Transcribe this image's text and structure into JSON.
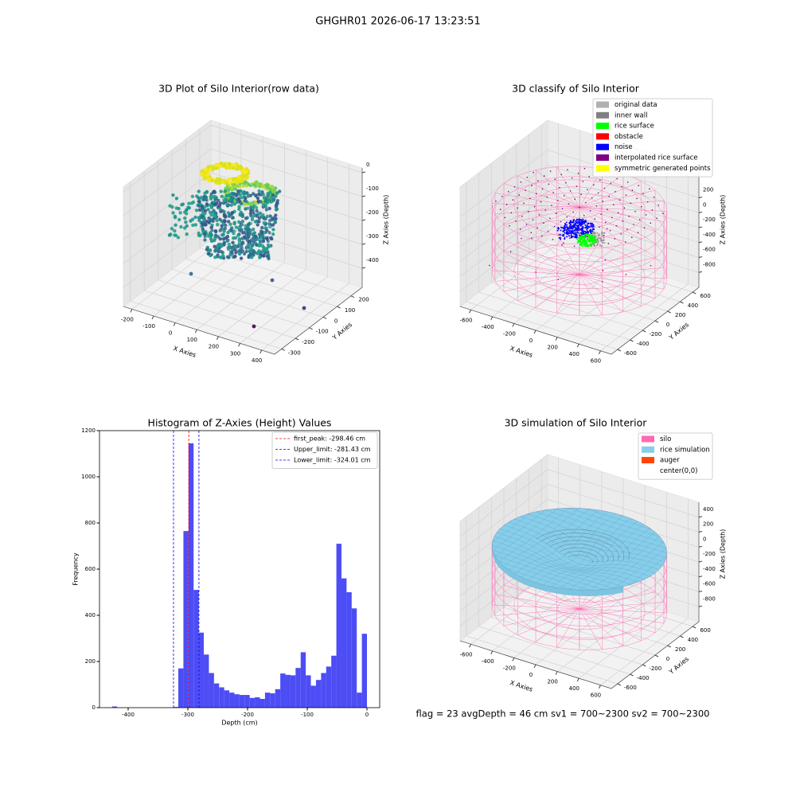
{
  "figure": {
    "title": "GHGHR01 2026-06-17 13:23:51",
    "footer": "flag = 23  avgDepth = 46 cm    sv1 = 700~2300  sv2 = 700~2300"
  },
  "chart_data": [
    {
      "type": "scatter3d",
      "title": "3D Plot of Silo Interior(row data)",
      "xlabel": "X Axies",
      "ylabel": "Y Axies",
      "zlabel": "Z Axies (Depth)",
      "xlim": [
        -240,
        460
      ],
      "xticks": [
        -200,
        -100,
        0,
        100,
        200,
        300,
        400
      ],
      "ylim": [
        -350,
        280
      ],
      "yticks": [
        -300,
        -200,
        -100,
        0,
        100,
        200
      ],
      "zlim": [
        -480,
        20
      ],
      "zticks": [
        -400,
        -300,
        -200,
        -100,
        0
      ]
    },
    {
      "type": "scatter3d",
      "title": "3D classify of Silo Interior",
      "xlabel": "X Axies",
      "ylabel": "Y Axies",
      "zlabel": "Z Axies (Depth)",
      "xlim": [
        -700,
        700
      ],
      "xticks": [
        -600,
        -400,
        -200,
        0,
        200,
        400,
        600
      ],
      "ylim": [
        -700,
        700
      ],
      "yticks": [
        -600,
        -400,
        -200,
        0,
        200,
        400,
        600
      ],
      "zlim": [
        -1000,
        600
      ],
      "zticks": [
        -800,
        -600,
        -400,
        -200,
        0,
        200
      ],
      "legend_loc": "upper right",
      "legend": [
        {
          "name": "original data",
          "color": "#b0b0b0"
        },
        {
          "name": "inner wall",
          "color": "#808080"
        },
        {
          "name": "rice surface",
          "color": "#00ff00"
        },
        {
          "name": "obstacle",
          "color": "#ff0000"
        },
        {
          "name": "noise",
          "color": "#0000ff"
        },
        {
          "name": "interpolated rice surface",
          "color": "#800080"
        },
        {
          "name": "symmetric generated points",
          "color": "#ffff00"
        }
      ]
    },
    {
      "type": "histogram",
      "title": "Histogram of Z-Axies (Height) Values",
      "xlabel": "Depth (cm)",
      "ylabel": "Frequency",
      "color": "#4d4df5",
      "bins": [
        -427,
        -418.46,
        -409.92,
        -401.38,
        -392.84,
        -384.3,
        -375.76,
        -367.22,
        -358.68,
        -350.14,
        -341.6,
        -333.06,
        -324.52,
        -315.98,
        -307.44,
        -298.9,
        -290.36,
        -281.82,
        -273.28,
        -264.74,
        -256.2,
        -247.66,
        -239.12,
        -230.58,
        -222.04,
        -213.5,
        -204.96,
        -196.42,
        -187.88,
        -179.34,
        -170.8,
        -162.26,
        -153.72,
        -145.18,
        -136.64,
        -128.1,
        -119.56,
        -111.02,
        -102.48,
        -93.94,
        -85.4,
        -76.86,
        -68.32,
        -59.78,
        -51.24,
        -42.7,
        -34.16,
        -25.62,
        -17.08,
        -8.54,
        0
      ],
      "values": [
        5,
        0,
        0,
        0,
        0,
        0,
        0,
        0,
        0,
        0,
        0,
        0,
        3,
        170,
        765,
        1145,
        510,
        325,
        230,
        150,
        105,
        88,
        75,
        65,
        58,
        55,
        55,
        42,
        45,
        38,
        65,
        62,
        80,
        148,
        142,
        140,
        172,
        240,
        140,
        95,
        120,
        150,
        178,
        225,
        710,
        560,
        500,
        430,
        65,
        320
      ],
      "xlim": [
        -448,
        21.33
      ],
      "xticks": [
        -400,
        -300,
        -200,
        -100,
        0
      ],
      "ylim": [
        0,
        1200
      ],
      "yticks": [
        0,
        200,
        400,
        600,
        800,
        1000,
        1200
      ],
      "legend_loc": "upper right",
      "vlines": [
        {
          "name": "first_peak: -298.46 cm",
          "value": -298.46,
          "color": "#ff0000"
        },
        {
          "name": "Upper_limit: -281.43 cm",
          "value": -281.43,
          "color": "#0000ff"
        },
        {
          "name": "Lower_limit: -324.01 cm",
          "value": -324.01,
          "color": "#0000ff"
        }
      ]
    },
    {
      "type": "surface3d",
      "title": "3D simulation of Silo Interior",
      "xlabel": "X Axies",
      "ylabel": "Y Axies",
      "zlabel": "Z Axies (Depth)",
      "xlim": [
        -700,
        700
      ],
      "xticks": [
        -600,
        -400,
        -200,
        0,
        200,
        400,
        600
      ],
      "ylim": [
        -700,
        700
      ],
      "yticks": [
        -600,
        -400,
        -200,
        0,
        200,
        400,
        600
      ],
      "zlim": [
        -1000,
        600
      ],
      "zticks": [
        -800,
        -600,
        -400,
        -200,
        0,
        200,
        400
      ],
      "legend_loc": "upper right",
      "legend": [
        {
          "name": "silo",
          "color": "#ff69b4"
        },
        {
          "name": "rice simulation",
          "color": "#87ceeb"
        },
        {
          "name": "auger",
          "color": "#ff4500"
        },
        {
          "name": "center(0,0)",
          "color": "#ffffff"
        }
      ]
    }
  ]
}
